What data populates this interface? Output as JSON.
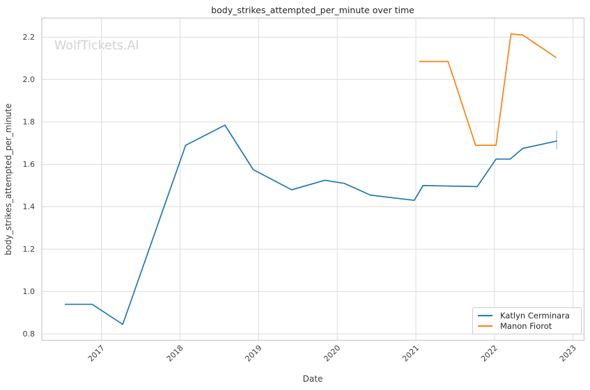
{
  "watermark": "WolfTickets.AI",
  "chart_data": {
    "type": "line",
    "title": "body_strikes_attempted_per_minute over time",
    "xlabel": "Date",
    "ylabel": "body_strikes_attempted_per_minute",
    "x_tick_labels": [
      "2017",
      "2018",
      "2019",
      "2020",
      "2021",
      "2022",
      "2023"
    ],
    "y_tick_labels": [
      "0.8",
      "1.0",
      "1.2",
      "1.4",
      "1.6",
      "1.8",
      "2.0",
      "2.2"
    ],
    "xlim": [
      2016.24,
      2023.14
    ],
    "ylim": [
      0.77,
      2.29
    ],
    "grid": true,
    "legend_position": "lower right",
    "series": [
      {
        "name": "Katlyn Cerminara",
        "color": "#1f77b4",
        "x": [
          2016.54,
          2016.88,
          2017.27,
          2018.07,
          2018.57,
          2018.93,
          2019.42,
          2019.84,
          2020.09,
          2020.42,
          2020.98,
          2021.09,
          2021.78,
          2022.02,
          2022.2,
          2022.36,
          2022.79
        ],
        "y": [
          0.94,
          0.94,
          0.845,
          1.69,
          1.785,
          1.575,
          1.48,
          1.525,
          1.51,
          1.455,
          1.43,
          1.5,
          1.495,
          1.625,
          1.625,
          1.675,
          1.71
        ],
        "last_point_ci": {
          "x": 2022.79,
          "y_low": 1.67,
          "y_high": 1.76
        },
        "ci_color": "#aecbe8"
      },
      {
        "name": "Manon Fiorot",
        "color": "#ff7f0e",
        "x": [
          2021.05,
          2021.41,
          2021.76,
          2022.02,
          2022.21,
          2022.36,
          2022.78
        ],
        "y": [
          2.085,
          2.085,
          1.69,
          1.69,
          2.215,
          2.21,
          2.105
        ]
      }
    ]
  }
}
